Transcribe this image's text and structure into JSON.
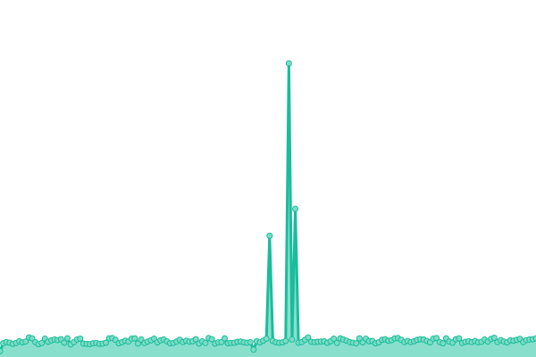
{
  "chart_data": {
    "type": "area",
    "title": "",
    "xlabel": "",
    "ylabel": "",
    "ylim": [
      0,
      100
    ],
    "grid": false,
    "axes_visible": false,
    "legend": "none",
    "colors": {
      "line": "#1abc9c",
      "fill": "#88e0cc",
      "point_fill": "#7ddcc4",
      "point_stroke": "#1abc9c"
    },
    "series": [
      {
        "values": [
          0.5,
          3.2,
          3.6,
          3.4,
          3.0,
          3.3,
          3.9,
          3.5,
          3.8,
          5.2,
          4.9,
          3.6,
          2.9,
          3.3,
          4.8,
          3.7,
          4.2,
          4.5,
          4.3,
          4.6,
          3.4,
          4.9,
          2.8,
          3.6,
          4.5,
          4.8,
          3.1,
          3.0,
          2.9,
          3.2,
          3.3,
          3.0,
          3.1,
          3.4,
          4.9,
          5.0,
          4.4,
          3.2,
          3.6,
          4.1,
          3.8,
          4.8,
          4.9,
          3.1,
          4.5,
          3.3,
          3.8,
          4.2,
          4.8,
          3.5,
          4.2,
          4.5,
          3.9,
          3.2,
          3.3,
          3.8,
          4.4,
          3.6,
          4.1,
          3.8,
          3.9,
          4.6,
          3.1,
          3.9,
          3.3,
          5.0,
          4.6,
          3.1,
          3.5,
          3.6,
          4.9,
          3.2,
          3.3,
          3.4,
          3.7,
          3.8,
          3.5,
          3.4,
          3.6,
          1.0,
          3.9,
          3.5,
          4.1,
          4.8,
          40.4,
          4.0,
          3.5,
          3.4,
          3.5,
          4.0,
          100,
          4.5,
          49.7,
          3.4,
          3.6,
          4.4,
          5.2,
          3.7,
          3.6,
          3.7,
          3.8,
          3.9,
          3.4,
          3.9,
          4.8,
          3.3,
          4.9,
          4.5,
          4.1,
          3.6,
          3.4,
          3.2,
          4.9,
          3.5,
          4.8,
          3.9,
          4.0,
          3.2,
          3.5,
          4.4,
          4.6,
          4.1,
          4.3,
          4.9,
          5.0,
          4.4,
          3.6,
          4.0,
          3.6,
          3.9,
          4.4,
          4.6,
          4.5,
          4.0,
          3.5,
          4.8,
          5.0,
          3.6,
          3.2,
          4.9,
          3.8,
          3.4,
          4.6,
          4.9,
          3.3,
          3.7,
          3.9,
          3.6,
          4.0,
          3.5,
          3.7,
          4.5,
          3.8,
          4.7,
          5.1,
          3.6,
          4.3,
          3.8,
          3.5,
          4.2,
          4.1,
          4.4,
          4.7,
          3.6,
          4.3,
          4.5,
          4.6,
          4.9
        ]
      }
    ]
  }
}
